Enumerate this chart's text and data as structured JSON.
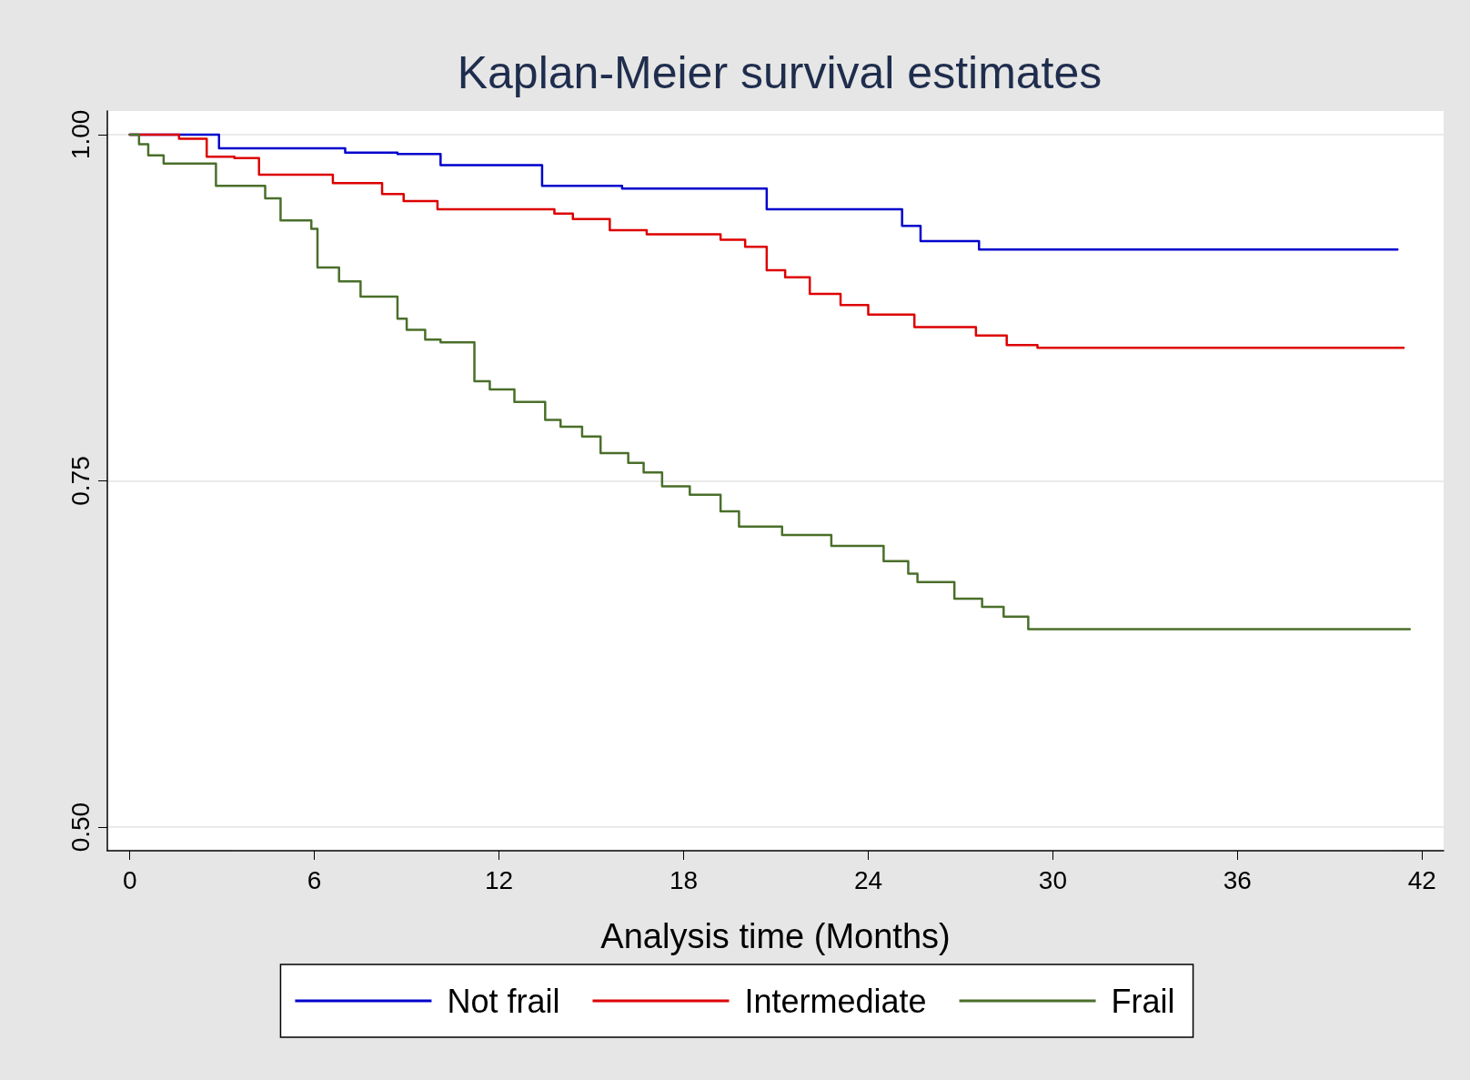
{
  "chart_data": {
    "type": "step",
    "title": "Kaplan-Meier survival estimates",
    "xlabel": "Analysis time (Months)",
    "xlim": [
      -0.73,
      42.7
    ],
    "xticks": [
      0,
      6,
      12,
      18,
      24,
      30,
      36,
      42
    ],
    "ylim": [
      0.483,
      1.017
    ],
    "yticks": [
      {
        "value": 0.5,
        "label": "0.50"
      },
      {
        "value": 0.75,
        "label": "0.75"
      },
      {
        "value": 1,
        "label": "1.00"
      }
    ],
    "grid": "y",
    "legend": "bottom",
    "marker": "none",
    "line_style": "solid",
    "series": [
      {
        "name": "Not frail",
        "color": "#0000cc",
        "x": [
          0,
          2.9,
          7.0,
          8.7,
          10.1,
          13.4,
          16.0,
          20.7,
          25.1,
          25.7,
          27.6,
          41.2
        ],
        "values": [
          1.0,
          0.99,
          0.987,
          0.986,
          0.978,
          0.963,
          0.961,
          0.946,
          0.934,
          0.923,
          0.917,
          0.917
        ]
      },
      {
        "name": "Intermediate",
        "color": "#dd0000",
        "x": [
          0,
          1.6,
          2.5,
          3.4,
          4.2,
          6.6,
          8.2,
          8.9,
          10.0,
          13.8,
          14.4,
          15.6,
          16.8,
          19.2,
          20.0,
          20.7,
          21.3,
          22.1,
          23.1,
          24.0,
          25.5,
          27.5,
          28.5,
          29.5,
          41.4
        ],
        "values": [
          1.0,
          0.997,
          0.984,
          0.983,
          0.971,
          0.965,
          0.957,
          0.952,
          0.946,
          0.943,
          0.939,
          0.931,
          0.928,
          0.924,
          0.919,
          0.902,
          0.897,
          0.885,
          0.877,
          0.87,
          0.861,
          0.855,
          0.848,
          0.846,
          0.846
        ]
      },
      {
        "name": "Frail",
        "color": "#4a6f2a",
        "x": [
          0,
          0.3,
          0.6,
          1.1,
          2.8,
          4.4,
          4.9,
          5.9,
          6.1,
          6.8,
          7.5,
          8.7,
          9.0,
          9.6,
          10.1,
          11.2,
          11.7,
          12.5,
          13.5,
          14.0,
          14.7,
          15.3,
          16.2,
          16.7,
          17.3,
          18.2,
          19.2,
          19.8,
          21.2,
          22.8,
          24.5,
          25.3,
          25.6,
          26.8,
          27.7,
          28.4,
          29.2,
          41.6
        ],
        "values": [
          1.0,
          0.993,
          0.985,
          0.979,
          0.963,
          0.954,
          0.938,
          0.932,
          0.904,
          0.894,
          0.883,
          0.867,
          0.859,
          0.852,
          0.85,
          0.822,
          0.816,
          0.807,
          0.794,
          0.789,
          0.782,
          0.77,
          0.763,
          0.756,
          0.746,
          0.74,
          0.728,
          0.717,
          0.711,
          0.703,
          0.692,
          0.683,
          0.677,
          0.665,
          0.659,
          0.652,
          0.643,
          0.643
        ]
      }
    ]
  }
}
